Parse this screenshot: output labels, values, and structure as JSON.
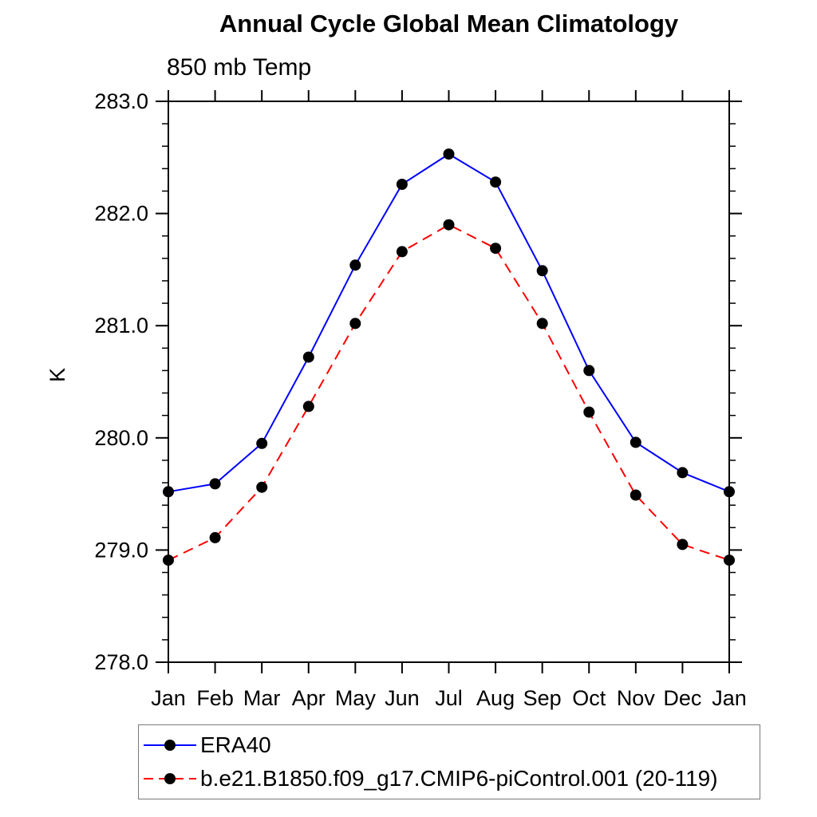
{
  "chart_data": {
    "type": "line",
    "title": "Annual Cycle Global Mean Climatology",
    "subtitle": "850 mb Temp",
    "ylabel": "K",
    "xlabel": "",
    "x_tick_labels": [
      "Jan",
      "Feb",
      "Mar",
      "Apr",
      "May",
      "Jun",
      "Jul",
      "Aug",
      "Sep",
      "Oct",
      "Nov",
      "Dec",
      "Jan"
    ],
    "ylim": [
      278.0,
      283.0
    ],
    "y_major_step": 1.0,
    "y_minor_step": 0.2,
    "grid": false,
    "legend_position": "below-plot-boxed",
    "frame_color": "#000000",
    "background_color": "#ffffff",
    "marker": "filled-circle",
    "marker_color": "#000000",
    "series": [
      {
        "name": "ERA40",
        "color": "#0000ff",
        "line_style": "solid",
        "values": [
          279.52,
          279.59,
          279.95,
          280.72,
          281.54,
          282.26,
          282.53,
          282.28,
          281.49,
          280.6,
          279.96,
          279.69,
          279.52
        ]
      },
      {
        "name": "b.e21.B1850.f09_g17.CMIP6-piControl.001 (20-119)",
        "color": "#ff0000",
        "line_style": "dashed",
        "values": [
          278.91,
          279.11,
          279.56,
          280.28,
          281.02,
          281.66,
          281.9,
          281.69,
          281.02,
          280.23,
          279.49,
          279.05,
          278.91
        ]
      }
    ]
  }
}
